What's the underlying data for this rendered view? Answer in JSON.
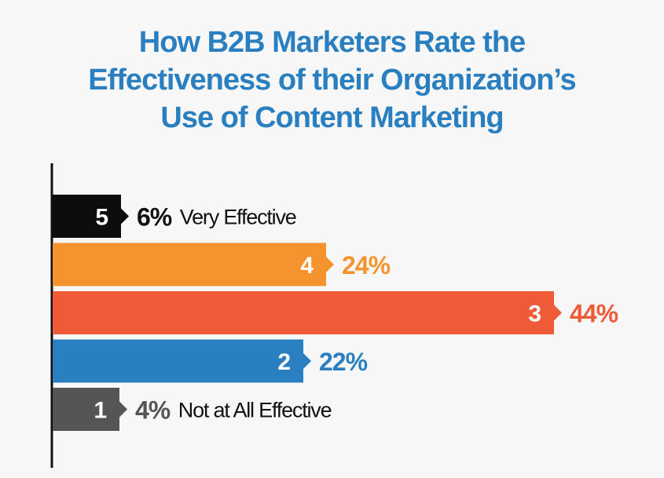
{
  "title_lines": [
    "How B2B Marketers Rate the",
    "Effectiveness of their Organization’s",
    "Use of Content Marketing"
  ],
  "chart_data": {
    "type": "bar",
    "orientation": "horizontal",
    "title": "How B2B Marketers Rate the Effectiveness of their Organization’s Use of Content Marketing",
    "categories": [
      "5",
      "4",
      "3",
      "2",
      "1"
    ],
    "values": [
      6,
      24,
      44,
      22,
      4
    ],
    "value_labels": [
      "6%",
      "24%",
      "44%",
      "22%",
      "4%"
    ],
    "descriptions": [
      "Very Effective",
      "",
      "",
      "",
      "Not at All Effective"
    ],
    "colors": [
      "#0d0d0d",
      "#f5942e",
      "#ee5b36",
      "#2a7fc1",
      "#555555"
    ],
    "label_colors": [
      "#111111",
      "#f5942e",
      "#ee5b36",
      "#2a7fc1",
      "#555555"
    ],
    "xlim": [
      0,
      44
    ]
  }
}
